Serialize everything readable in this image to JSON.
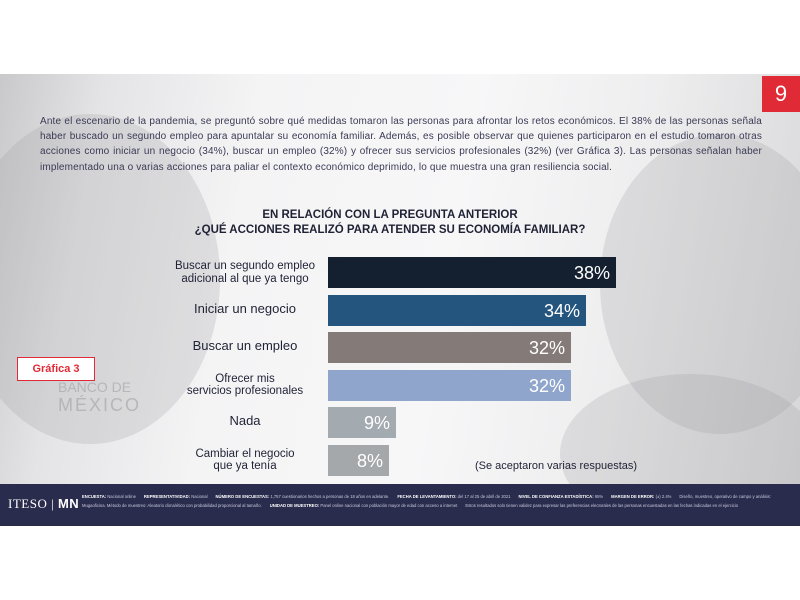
{
  "page_number": "9",
  "intro_text": "Ante el escenario de la pandemia, se preguntó sobre qué medidas tomaron las personas para afrontar los retos económicos. El 38% de las personas señala haber buscado un segundo empleo para apuntalar su economía familiar. Además, es posible observar que quienes participaron en el estudio tomaron otras acciones como iniciar un negocio (34%), buscar un empleo (32%) y ofrecer sus servicios profesionales (32%) (ver Gráfica 3). Las personas señalan haber implementado una o varias acciones para paliar el contexto económico deprimido, lo que muestra una gran resiliencia social.",
  "grafica_label": "Gráfica 3",
  "background_text": {
    "line1": "BANCO DE",
    "line2": "MÉXICO"
  },
  "chart_data": {
    "type": "bar",
    "orientation": "horizontal",
    "title_lines": [
      "EN RELACIÓN CON LA PREGUNTA ANTERIOR",
      "¿QUÉ ACCIONES REALIZÓ PARA ATENDER SU ECONOMÍA FAMILIAR?"
    ],
    "categories": [
      [
        "Buscar un segundo empleo",
        "adicional al que ya tengo"
      ],
      [
        "Iniciar un negocio"
      ],
      [
        "Buscar un empleo"
      ],
      [
        "Ofrecer mis",
        "servicios profesionales"
      ],
      [
        "Nada"
      ],
      [
        "Cambiar el negocio",
        "que ya tenía"
      ]
    ],
    "values": [
      38,
      34,
      32,
      32,
      9,
      8
    ],
    "value_labels": [
      "38%",
      "34%",
      "32%",
      "32%",
      "9%",
      "8%"
    ],
    "bar_colors": [
      "#14202f",
      "#23557f",
      "#847b78",
      "#8fa5cb",
      "#a3aab0",
      "#a5a8ab"
    ],
    "xlim": [
      0,
      38
    ],
    "note": "(Se aceptaron varias respuestas)"
  },
  "footer": {
    "logo_left": "ITESO",
    "logo_right": "MN",
    "row1": [
      {
        "label": "ENCUESTA:",
        "text": "Nacional online"
      },
      {
        "label": "REPRESENTATIVIDAD:",
        "text": "Nacional"
      },
      {
        "label": "NÚMERO DE ENCUESTAS:",
        "text": "1,757 cuestionarios hechos a personas de 18 años en adelante."
      },
      {
        "label": "FECHA DE LEVANTAMIENTO:",
        "text": "del 17 al 25 de abril de 2021"
      },
      {
        "label": "NIVEL DE CONFIANZA ESTADÍSTICA:",
        "text": "95%"
      },
      {
        "label": "MARGEN DE ERROR:",
        "text": "(±) 2.4%"
      },
      {
        "label": "",
        "text": "Diseño, muestreo, operativo de campo y análisis:"
      }
    ],
    "row2": [
      {
        "label": "",
        "text": "Mugaoficina. Método de muestreo: Aleatorio clima/ético con probabilidad proporcional al tamaño."
      },
      {
        "label": "UNIDAD DE MUESTREO:",
        "text": "Panel online nacional con población mayor de edad con acceso a internet"
      },
      {
        "label": "",
        "text": "Estos resultados solo tienen validez para expresar las preferencias electorales de las personas encuestadas en las fechas indicadas en el ejercicio"
      }
    ]
  }
}
